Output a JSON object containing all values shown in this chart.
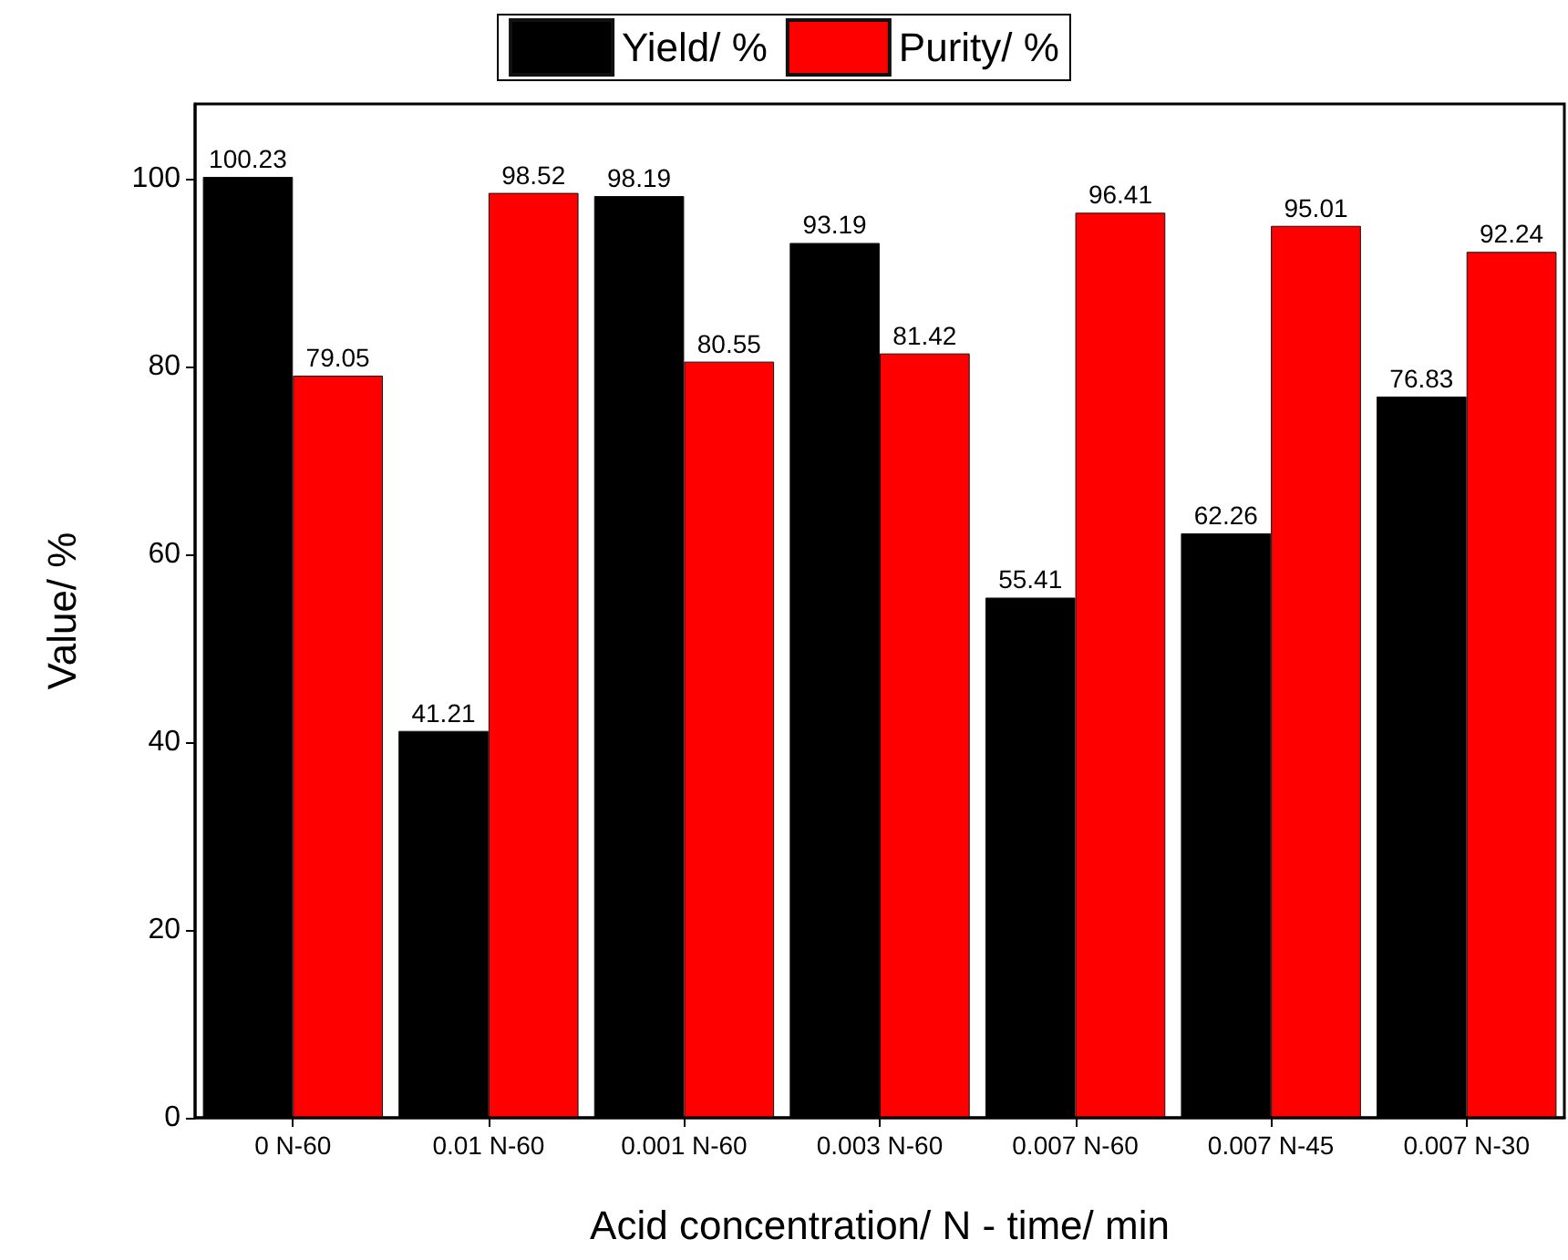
{
  "chart_data": {
    "type": "bar",
    "xlabel": "Acid concentration/ N - time/ min",
    "ylabel": "Value/ %",
    "categories": [
      "0 N-60",
      "0.01 N-60",
      "0.001 N-60",
      "0.003 N-60",
      "0.007 N-60",
      "0.007 N-45",
      "0.007 N-30"
    ],
    "series": [
      {
        "name": "Yield/ %",
        "color": "#000000",
        "values": [
          100.23,
          41.21,
          98.19,
          93.19,
          55.41,
          62.26,
          76.83
        ]
      },
      {
        "name": "Purity/ %",
        "color": "#ff0000",
        "values": [
          79.05,
          98.52,
          80.55,
          81.42,
          96.41,
          95.01,
          92.24
        ]
      }
    ],
    "ylim": [
      0,
      108
    ],
    "yticks": [
      0,
      20,
      40,
      60,
      80,
      100
    ],
    "data_labels": true,
    "legend": "top",
    "grid": false
  }
}
